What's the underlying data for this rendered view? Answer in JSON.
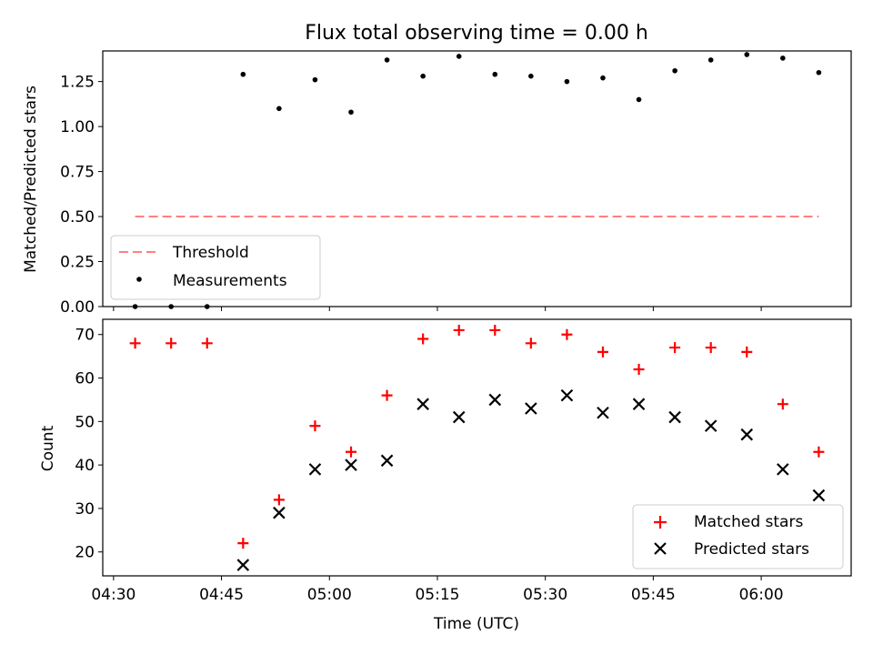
{
  "chart_data": [
    {
      "type": "scatter",
      "title": "Flux total observing time = 0.00 h",
      "ylabel": "Matched/Predicted stars",
      "ylim": [
        0,
        1.42
      ],
      "yticks": [
        "0.00",
        "0.25",
        "0.50",
        "0.75",
        "1.00",
        "1.25"
      ],
      "grid": false,
      "legend_position": "lower-left",
      "series": [
        {
          "name": "Threshold",
          "style": "dashed-line",
          "color": "#ff8080",
          "x": [
            "04:33",
            "06:08"
          ],
          "y": [
            0.5,
            0.5
          ]
        },
        {
          "name": "Measurements",
          "style": "dot",
          "color": "#000000",
          "x": [
            "04:33",
            "04:38",
            "04:43",
            "04:48",
            "04:53",
            "04:58",
            "05:03",
            "05:08",
            "05:13",
            "05:18",
            "05:23",
            "05:28",
            "05:33",
            "05:38",
            "05:43",
            "05:48",
            "05:53",
            "05:58",
            "06:03",
            "06:08"
          ],
          "y": [
            0.0,
            0.0,
            0.0,
            1.29,
            1.1,
            1.26,
            1.08,
            1.37,
            1.28,
            1.39,
            1.29,
            1.28,
            1.25,
            1.27,
            1.15,
            1.31,
            1.37,
            1.4,
            1.38,
            1.3
          ]
        }
      ]
    },
    {
      "type": "scatter",
      "xlabel": "Time (UTC)",
      "ylabel": "Count",
      "ylim": [
        14.5,
        73.5
      ],
      "yticks": [
        "20",
        "30",
        "40",
        "50",
        "60",
        "70"
      ],
      "xticks": [
        "04:30",
        "04:45",
        "05:00",
        "05:15",
        "05:30",
        "05:45",
        "06:00"
      ],
      "grid": false,
      "legend_position": "lower-right",
      "series": [
        {
          "name": "Matched stars",
          "marker": "plus",
          "color": "#ff0000",
          "x": [
            "04:33",
            "04:38",
            "04:43",
            "04:48",
            "04:53",
            "04:58",
            "05:03",
            "05:08",
            "05:13",
            "05:18",
            "05:23",
            "05:28",
            "05:33",
            "05:38",
            "05:43",
            "05:48",
            "05:53",
            "05:58",
            "06:03",
            "06:08"
          ],
          "y": [
            68,
            68,
            68,
            22,
            32,
            49,
            43,
            56,
            69,
            71,
            71,
            68,
            70,
            66,
            62,
            67,
            67,
            66,
            54,
            43
          ]
        },
        {
          "name": "Predicted stars",
          "marker": "x",
          "color": "#000000",
          "x": [
            "04:48",
            "04:53",
            "04:58",
            "05:03",
            "05:08",
            "05:13",
            "05:18",
            "05:23",
            "05:28",
            "05:33",
            "05:38",
            "05:43",
            "05:48",
            "05:53",
            "05:58",
            "06:03",
            "06:08"
          ],
          "y": [
            17,
            29,
            39,
            40,
            41,
            54,
            51,
            55,
            53,
            56,
            52,
            54,
            51,
            49,
            47,
            39,
            33
          ]
        }
      ]
    }
  ]
}
